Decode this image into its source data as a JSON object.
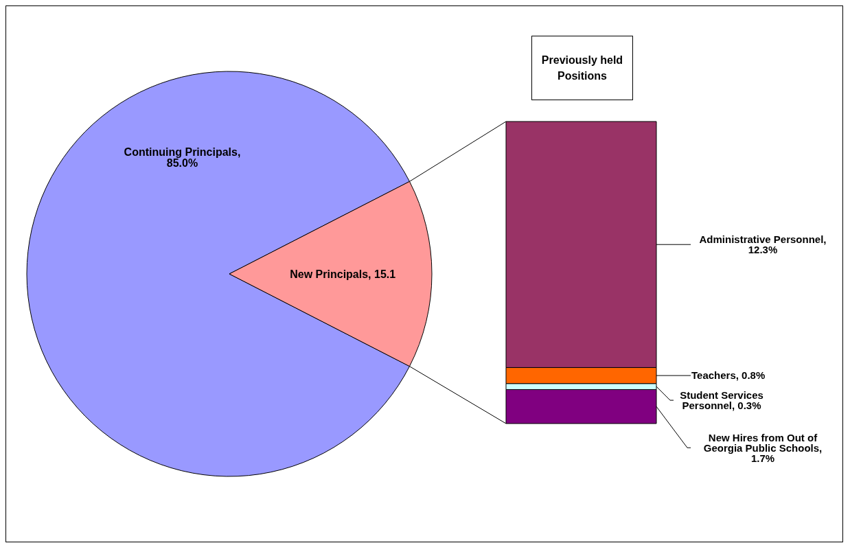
{
  "chart_data": [
    {
      "type": "pie",
      "categories": [
        null,
        null
      ],
      "values": [
        85.0,
        15.1
      ],
      "colors": [
        "#9999ff",
        "#ff9999"
      ],
      "value_labels": [
        "Continuing Principals, 85.0%",
        "New Principals, 15.1"
      ]
    },
    {
      "type": "bar",
      "title": "Previously held Positions",
      "stacked": true,
      "categories": [
        null
      ],
      "series": [
        {
          "color": "#800080",
          "values": [
            1.7
          ],
          "value_labels": [
            "New Hires from Out of Georgia Public Schools, 1.7%"
          ]
        },
        {
          "color": "#ccffff",
          "values": [
            0.3
          ],
          "value_labels": [
            "Student Services Personnel, 0.3%"
          ]
        },
        {
          "color": "#ff6600",
          "values": [
            0.8
          ],
          "value_labels": [
            "Teachers, 0.8%"
          ]
        },
        {
          "color": "#993366",
          "values": [
            12.3
          ],
          "value_labels": [
            "Administrative Personnel, 12.3%"
          ]
        }
      ]
    }
  ]
}
